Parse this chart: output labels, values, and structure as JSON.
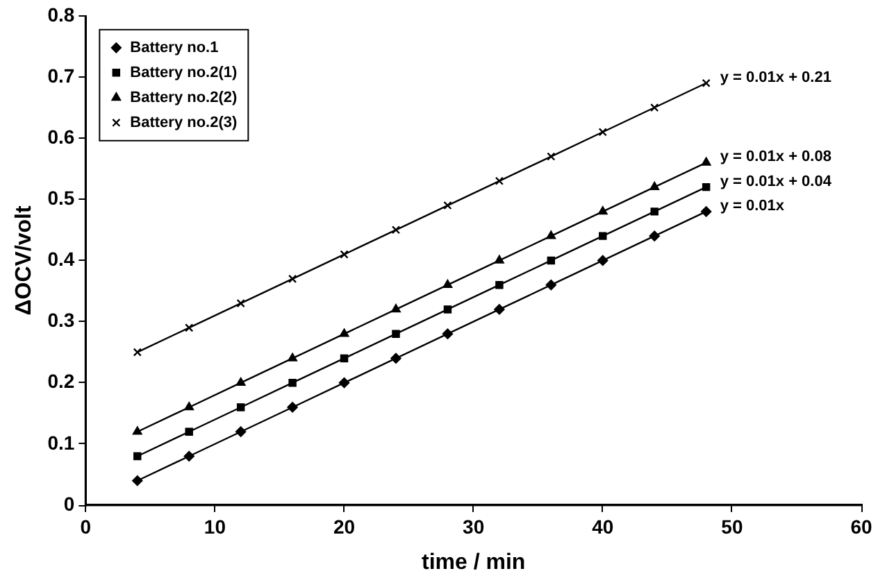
{
  "chart_data": {
    "type": "line",
    "xlabel": "time / min",
    "ylabel": "ΔOCV/volt",
    "x": [
      4,
      8,
      12,
      16,
      20,
      24,
      28,
      32,
      36,
      40,
      44,
      48
    ],
    "series": [
      {
        "name": "Battery no.1",
        "color": "#000000",
        "marker": "diamond",
        "values": [
          0.04,
          0.08,
          0.12,
          0.16,
          0.2,
          0.24,
          0.28,
          0.32,
          0.36,
          0.4,
          0.44,
          0.48
        ]
      },
      {
        "name": "Battery no.2(1)",
        "color": "#000000",
        "marker": "square",
        "values": [
          0.08,
          0.12,
          0.16,
          0.2,
          0.24,
          0.28,
          0.32,
          0.36,
          0.4,
          0.44,
          0.48,
          0.52
        ]
      },
      {
        "name": "Battery no.2(2)",
        "color": "#000000",
        "marker": "triangle",
        "values": [
          0.12,
          0.16,
          0.2,
          0.24,
          0.28,
          0.32,
          0.36,
          0.4,
          0.44,
          0.48,
          0.52,
          0.56
        ]
      },
      {
        "name": "Battery no.2(3)",
        "color": "#000000",
        "marker": "cross",
        "values": [
          0.25,
          0.29,
          0.33,
          0.37,
          0.41,
          0.45,
          0.49,
          0.53,
          0.57,
          0.61,
          0.65,
          0.69
        ]
      }
    ],
    "xlim": [
      0,
      60
    ],
    "xticks": [
      0,
      10,
      20,
      30,
      40,
      50,
      60
    ],
    "ylim": [
      0,
      0.8
    ],
    "yticks": [
      0,
      0.1,
      0.2,
      0.3,
      0.4,
      0.5,
      0.6,
      0.7,
      0.8
    ],
    "grid": false,
    "legend": "top left",
    "line_style": "solid",
    "annotations": [
      "y = 0.01x + 0.21",
      "y = 0.01x + 0.08",
      "y = 0.01x + 0.04",
      "y = 0.01x"
    ]
  }
}
